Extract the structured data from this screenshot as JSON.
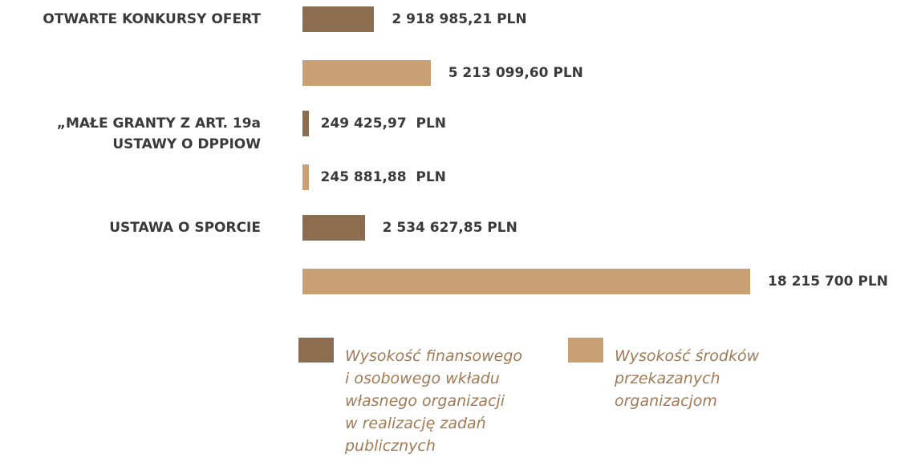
{
  "chart_data": {
    "type": "bar",
    "orientation": "horizontal",
    "categories": [
      "OTWARTE KONKURSY OFERT",
      "„MAŁE GRANTY Z ART. 19a\nUSTAWY O DPPIOW",
      "USTAWA O SPORCIE"
    ],
    "series": [
      {
        "name": "Wysokość finansowego\ni osobowego wkładu\nwłasnego organizacji\nw realizację zadań\npublicznych",
        "color": "#8c6d4f",
        "values": [
          2918985.21,
          249425.97,
          2534627.85
        ],
        "value_labels": [
          "2 918 985,21 PLN",
          "249 425,97  PLN",
          "2 534 627,85 PLN"
        ]
      },
      {
        "name": "Wysokość środków\nprzekazanych\norganizacjom",
        "color": "#c9a073",
        "values": [
          5213099.6,
          245881.88,
          18215700
        ],
        "value_labels": [
          "5 213 099,60 PLN",
          "245 881,88  PLN",
          "18 215 700 PLN"
        ]
      }
    ]
  }
}
